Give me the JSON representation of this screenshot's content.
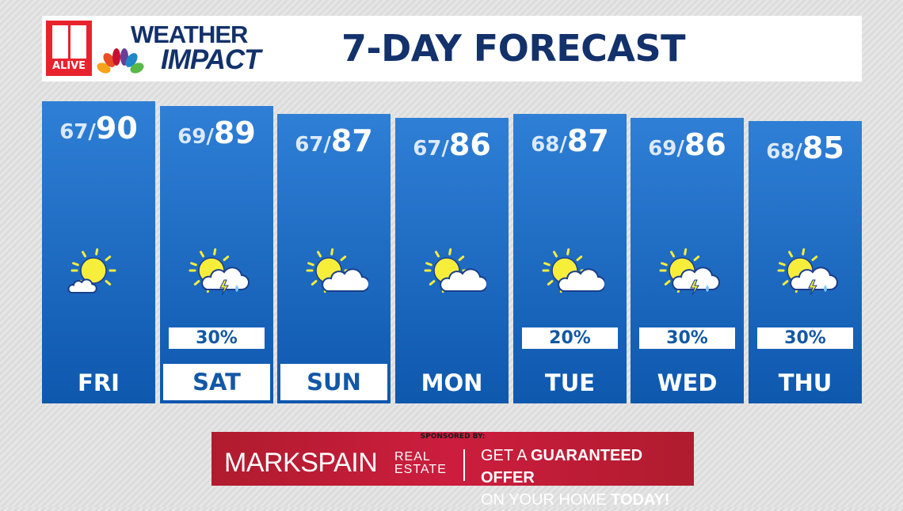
{
  "header": {
    "station_logo": "11 ALIVE",
    "brand_logo": "WEATHER IMPACT",
    "brand_line1": "WEATHER",
    "brand_line2": "IMPACT",
    "title": "7-DAY FORECAST"
  },
  "days": [
    {
      "day": "FRI",
      "low": "67/",
      "high": "90",
      "icon": "sun-mostly-sunny-icon",
      "pop": null,
      "highlight": false
    },
    {
      "day": "SAT",
      "low": "69/",
      "high": "89",
      "icon": "sun-cloud-thunderstorm-icon",
      "pop": "30%",
      "highlight": true
    },
    {
      "day": "SUN",
      "low": "67/",
      "high": "87",
      "icon": "partly-cloudy-icon",
      "pop": null,
      "highlight": true
    },
    {
      "day": "MON",
      "low": "67/",
      "high": "86",
      "icon": "partly-cloudy-icon",
      "pop": null,
      "highlight": false
    },
    {
      "day": "TUE",
      "low": "68/",
      "high": "87",
      "icon": "partly-cloudy-icon",
      "pop": "20%",
      "highlight": false
    },
    {
      "day": "WED",
      "low": "69/",
      "high": "86",
      "icon": "sun-cloud-thunderstorm-icon",
      "pop": "30%",
      "highlight": false
    },
    {
      "day": "THU",
      "low": "68/",
      "high": "85",
      "icon": "sun-cloud-thunderstorm-icon",
      "pop": "30%",
      "highlight": false
    }
  ],
  "sponsor": {
    "label": "SPONSORED BY:",
    "brand": "MARKSPAIN",
    "brand_sub1": "REAL",
    "brand_sub2": "ESTATE",
    "line1_a": "GET A ",
    "line1_b": "GUARANTEED OFFER",
    "line2_a": "ON YOUR HOME ",
    "line2_b": "TODAY!"
  },
  "colors": {
    "panel_top": "#2f7fd6",
    "panel_bottom": "#0e58ae",
    "title": "#13316b",
    "sponsor": "#c41d38",
    "sun": "#f7ee3c"
  }
}
